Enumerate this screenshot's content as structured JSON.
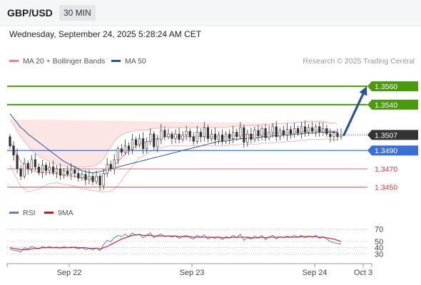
{
  "header": {
    "pair": "GBP/USD",
    "timeframe": "30 MIN"
  },
  "datetime": "Wednesday, September 24, 2025 5:28:24 AM CET",
  "legend": [
    {
      "label": "MA 20 + Bollinger Bands",
      "color": "#f08080"
    },
    {
      "label": "MA 50",
      "color": "#2a5592"
    }
  ],
  "credit": "Research © 2025 Trading Central",
  "rsi_legend": [
    {
      "label": "RSI",
      "color": "#5b7fd4"
    },
    {
      "label": "9MA",
      "color": "#d6161c"
    }
  ],
  "chart_data": {
    "type": "candlestick",
    "x_ticks": [
      "Sep 22",
      "Sep 23",
      "Sep 24",
      "Oct 3"
    ],
    "price_range": [
      1.3435,
      1.3578
    ],
    "levels": [
      {
        "value": 1.356,
        "label": "1.3560",
        "color": "#4a9a0e",
        "style": "tag"
      },
      {
        "value": 1.354,
        "label": "1.3540",
        "color": "#4a9a0e",
        "style": "tag"
      },
      {
        "value": 1.3507,
        "label": "1.3507",
        "color": "#333333",
        "style": "current"
      },
      {
        "value": 1.349,
        "label": "1.3490",
        "color": "#3b6fd8",
        "style": "tag"
      },
      {
        "value": 1.347,
        "label": "1.3470",
        "color": "#d43a3a",
        "style": "text"
      },
      {
        "value": 1.345,
        "label": "1.3450",
        "color": "#d43a3a",
        "style": "text"
      }
    ],
    "target_arrow": {
      "from": 1.3507,
      "to": 1.356,
      "color": "#2a5592"
    },
    "candles": [
      [
        1.3505,
        1.3495
      ],
      [
        1.3495,
        1.3485
      ],
      [
        1.3485,
        1.347
      ],
      [
        1.347,
        1.3462
      ],
      [
        1.3462,
        1.3476
      ],
      [
        1.3476,
        1.347
      ],
      [
        1.347,
        1.348
      ],
      [
        1.348,
        1.3472
      ],
      [
        1.3472,
        1.3466
      ],
      [
        1.3466,
        1.3474
      ],
      [
        1.3474,
        1.3468
      ],
      [
        1.3468,
        1.3472
      ],
      [
        1.3472,
        1.3466
      ],
      [
        1.3466,
        1.347
      ],
      [
        1.347,
        1.3463
      ],
      [
        1.3463,
        1.3468
      ],
      [
        1.3468,
        1.3464
      ],
      [
        1.3464,
        1.3469
      ],
      [
        1.3469,
        1.3465
      ],
      [
        1.3465,
        1.346
      ],
      [
        1.346,
        1.3464
      ],
      [
        1.3464,
        1.3458
      ],
      [
        1.3458,
        1.3462
      ],
      [
        1.3462,
        1.3456
      ],
      [
        1.3456,
        1.3462
      ],
      [
        1.3462,
        1.3452
      ],
      [
        1.3452,
        1.3465
      ],
      [
        1.3465,
        1.3475
      ],
      [
        1.3475,
        1.347
      ],
      [
        1.347,
        1.348
      ],
      [
        1.348,
        1.3492
      ],
      [
        1.3492,
        1.3488
      ],
      [
        1.3488,
        1.3495
      ],
      [
        1.3495,
        1.3491
      ],
      [
        1.3491,
        1.3502
      ],
      [
        1.3502,
        1.3496
      ],
      [
        1.3496,
        1.3503
      ],
      [
        1.3503,
        1.3492
      ],
      [
        1.3492,
        1.35
      ],
      [
        1.35,
        1.3508
      ],
      [
        1.3508,
        1.3494
      ],
      [
        1.3494,
        1.3502
      ],
      [
        1.3502,
        1.3512
      ],
      [
        1.3512,
        1.3505
      ],
      [
        1.3505,
        1.3508
      ],
      [
        1.3508,
        1.3503
      ],
      [
        1.3503,
        1.3508
      ],
      [
        1.3508,
        1.3502
      ],
      [
        1.3502,
        1.3507
      ],
      [
        1.3507,
        1.3511
      ],
      [
        1.3511,
        1.3505
      ],
      [
        1.3505,
        1.35
      ],
      [
        1.35,
        1.351
      ],
      [
        1.351,
        1.3505
      ],
      [
        1.3505,
        1.3515
      ],
      [
        1.3515,
        1.3503
      ],
      [
        1.3503,
        1.3508
      ],
      [
        1.3508,
        1.3502
      ],
      [
        1.3502,
        1.3507
      ],
      [
        1.3507,
        1.35
      ],
      [
        1.35,
        1.3508
      ],
      [
        1.3508,
        1.3503
      ],
      [
        1.3503,
        1.351
      ],
      [
        1.351,
        1.3505
      ],
      [
        1.3505,
        1.3515
      ],
      [
        1.3515,
        1.3499
      ],
      [
        1.3499,
        1.3508
      ],
      [
        1.3508,
        1.3502
      ],
      [
        1.3502,
        1.3512
      ],
      [
        1.3512,
        1.3506
      ],
      [
        1.3506,
        1.3514
      ],
      [
        1.3514,
        1.3504
      ],
      [
        1.3504,
        1.351
      ],
      [
        1.351,
        1.3516
      ],
      [
        1.3516,
        1.3505
      ],
      [
        1.3505,
        1.3512
      ],
      [
        1.3512,
        1.3507
      ],
      [
        1.3507,
        1.3513
      ],
      [
        1.3513,
        1.3508
      ],
      [
        1.3508,
        1.3514
      ],
      [
        1.3514,
        1.3509
      ],
      [
        1.3509,
        1.3516
      ],
      [
        1.3516,
        1.351
      ],
      [
        1.351,
        1.3515
      ],
      [
        1.3515,
        1.3511
      ],
      [
        1.3511,
        1.3516
      ],
      [
        1.3516,
        1.351
      ],
      [
        1.351,
        1.3514
      ],
      [
        1.3514,
        1.3508
      ],
      [
        1.3508,
        1.3505
      ],
      [
        1.3505,
        1.3509
      ],
      [
        1.3509,
        1.3505
      ],
      [
        1.3505,
        1.3507
      ]
    ],
    "ma20": [
      1.3499,
      1.3492,
      1.3485,
      1.3478,
      1.3474,
      1.347,
      1.3468,
      1.3467,
      1.3466,
      1.3466,
      1.3466,
      1.3466,
      1.3465,
      1.3465,
      1.3464,
      1.3463,
      1.3463,
      1.3462,
      1.3462,
      1.3461,
      1.346,
      1.346,
      1.346,
      1.3459,
      1.346,
      1.3461,
      1.3463,
      1.3466,
      1.347,
      1.3474,
      1.3478,
      1.3482,
      1.3486,
      1.3489,
      1.3492,
      1.3495,
      1.3497,
      1.3498,
      1.3499,
      1.3501,
      1.3502,
      1.3503,
      1.3504,
      1.3505,
      1.3505,
      1.3505,
      1.3505,
      1.3505,
      1.3505,
      1.3505,
      1.3505,
      1.3505,
      1.3505,
      1.3505,
      1.3505,
      1.3505,
      1.3505,
      1.3505,
      1.3505,
      1.3505,
      1.3505,
      1.3506,
      1.3506,
      1.3506,
      1.3507,
      1.3507,
      1.3507,
      1.3507,
      1.3507,
      1.3507,
      1.3508,
      1.3508,
      1.3508,
      1.3508,
      1.3509,
      1.3509,
      1.3509,
      1.351,
      1.351,
      1.351,
      1.3511,
      1.3511,
      1.3511,
      1.3512,
      1.3512,
      1.3512,
      1.3512,
      1.3512,
      1.3512,
      1.3511,
      1.3511,
      1.351
    ],
    "ma50": [
      1.353,
      1.3525,
      1.352,
      1.3515,
      1.3512,
      1.3508,
      1.3505,
      1.3502,
      1.3499,
      1.3496,
      1.3493,
      1.349,
      1.3487,
      1.3484,
      1.3481,
      1.3478,
      1.3476,
      1.3474,
      1.3472,
      1.347,
      1.3468,
      1.3467,
      1.3466,
      1.3466,
      1.3466,
      1.3467,
      1.3468,
      1.3469,
      1.347,
      1.3471,
      1.3472,
      1.3473,
      1.3474,
      1.3475,
      1.3476,
      1.3477,
      1.3478,
      1.3479,
      1.348,
      1.3481,
      1.3482,
      1.3483,
      1.3484,
      1.3485,
      1.3486,
      1.3487,
      1.3488,
      1.3489,
      1.349,
      1.3491,
      1.3492,
      1.3493,
      1.3494,
      1.3495,
      1.3496,
      1.3497,
      1.3498,
      1.3499,
      1.35,
      1.35,
      1.3501,
      1.3501,
      1.3502,
      1.3502,
      1.3503,
      1.3503,
      1.3503,
      1.3504,
      1.3504,
      1.3504,
      1.3505,
      1.3505,
      1.3505,
      1.3506,
      1.3506,
      1.3506,
      1.3507,
      1.3507,
      1.3507,
      1.3508,
      1.3508,
      1.3508,
      1.3509,
      1.3509,
      1.3509,
      1.3509,
      1.351,
      1.351,
      1.351,
      1.351,
      1.351,
      1.351
    ],
    "bb_width": [
      0.0025,
      0.0026,
      0.0026,
      0.0027,
      0.0026,
      0.0025,
      0.0022,
      0.002,
      0.0018,
      0.0016,
      0.0014,
      0.0012,
      0.0011,
      0.001,
      0.001,
      0.001,
      0.001,
      0.001,
      0.0011,
      0.0011,
      0.0012,
      0.0012,
      0.0013,
      0.0013,
      0.0014,
      0.0016,
      0.0018,
      0.0021,
      0.0024,
      0.0026,
      0.0026,
      0.0025,
      0.0023,
      0.0021,
      0.0019,
      0.0017,
      0.0015,
      0.0014,
      0.0013,
      0.0012,
      0.0012,
      0.0011,
      0.0011,
      0.0011,
      0.001,
      0.001,
      0.001,
      0.001,
      0.001,
      0.001,
      0.001,
      0.001,
      0.001,
      0.001,
      0.001,
      0.001,
      0.001,
      0.001,
      0.001,
      0.001,
      0.001,
      0.001,
      0.001,
      0.001,
      0.001,
      0.001,
      0.001,
      0.001,
      0.001,
      0.001,
      0.001,
      0.001,
      0.001,
      0.001,
      0.001,
      0.001,
      0.001,
      0.001,
      0.001,
      0.001,
      0.001,
      0.001,
      0.001,
      0.001,
      0.001,
      0.001,
      0.001,
      0.001,
      0.0009,
      0.0009,
      0.0009,
      0.0009
    ],
    "rsi_panel": {
      "range": [
        20,
        80
      ],
      "ticks": [
        70,
        50,
        40,
        30
      ],
      "rsi": [
        38,
        36,
        35,
        33,
        40,
        38,
        42,
        40,
        38,
        42,
        40,
        42,
        40,
        41,
        39,
        42,
        40,
        41,
        40,
        38,
        40,
        37,
        39,
        36,
        40,
        35,
        45,
        52,
        50,
        56,
        60,
        58,
        62,
        58,
        64,
        60,
        62,
        56,
        60,
        64,
        56,
        60,
        62,
        58,
        59,
        57,
        59,
        55,
        58,
        60,
        56,
        54,
        60,
        57,
        61,
        54,
        57,
        55,
        58,
        53,
        58,
        56,
        60,
        56,
        62,
        52,
        56,
        54,
        59,
        56,
        60,
        53,
        57,
        60,
        54,
        58,
        56,
        59,
        57,
        60,
        57,
        60,
        56,
        59,
        57,
        60,
        55,
        58,
        54,
        50,
        48,
        47,
        46
      ],
      "ma9": [
        40,
        39,
        38,
        37,
        37,
        37,
        38,
        39,
        39,
        40,
        40,
        40,
        40,
        40,
        40,
        40,
        40,
        40,
        41,
        40,
        40,
        40,
        39,
        39,
        39,
        38,
        40,
        42,
        45,
        48,
        51,
        54,
        56,
        58,
        60,
        61,
        61,
        60,
        60,
        60,
        59,
        59,
        59,
        59,
        59,
        59,
        59,
        58,
        58,
        58,
        58,
        57,
        57,
        57,
        57,
        57,
        57,
        57,
        57,
        56,
        56,
        56,
        57,
        57,
        57,
        57,
        57,
        56,
        56,
        56,
        57,
        56,
        57,
        57,
        57,
        57,
        57,
        57,
        57,
        57,
        57,
        58,
        58,
        58,
        58,
        58,
        57,
        57,
        56,
        55,
        54,
        52,
        50
      ]
    }
  }
}
